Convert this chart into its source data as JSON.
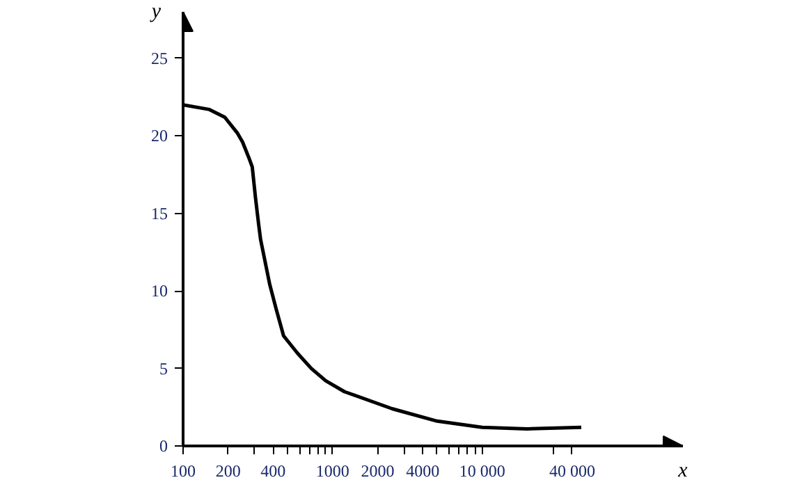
{
  "chart_data": {
    "type": "line",
    "xlabel": "x",
    "ylabel": "y",
    "log": "x",
    "grid": false,
    "marker": "none",
    "line_style": "solid",
    "xlim": [
      100,
      220000
    ],
    "ylim": [
      0,
      28
    ],
    "xticks": [
      100,
      200,
      {
        "value": 300,
        "label": null
      },
      400,
      {
        "value": 500,
        "label": null
      },
      {
        "value": 600,
        "label": null
      },
      {
        "value": 700,
        "label": null
      },
      {
        "value": 800,
        "label": null
      },
      {
        "value": 900,
        "label": null
      },
      1000,
      2000,
      {
        "value": 3000,
        "label": null
      },
      4000,
      {
        "value": 5000,
        "label": null
      },
      {
        "value": 6000,
        "label": null
      },
      {
        "value": 7000,
        "label": null
      },
      {
        "value": 8000,
        "label": null
      },
      {
        "value": 9000,
        "label": null
      },
      {
        "value": 10000,
        "label": "10 000"
      },
      {
        "value": 30000,
        "label": null
      },
      {
        "value": 40000,
        "label": "40 000"
      }
    ],
    "yticks": [
      0,
      5,
      10,
      15,
      20,
      25
    ],
    "x": [
      100,
      150,
      190,
      230,
      250,
      275,
      290,
      305,
      320,
      330,
      380,
      420,
      470,
      580,
      720,
      900,
      1200,
      2500,
      5000,
      10000,
      20000,
      46000
    ],
    "series": [
      {
        "color": "#000000",
        "values": [
          22.0,
          21.7,
          21.2,
          20.2,
          19.6,
          18.6,
          18.0,
          16.0,
          14.3,
          13.3,
          10.4,
          8.8,
          7.1,
          6.0,
          5.0,
          4.2,
          3.5,
          2.4,
          1.6,
          1.2,
          1.1,
          1.2
        ]
      }
    ]
  }
}
